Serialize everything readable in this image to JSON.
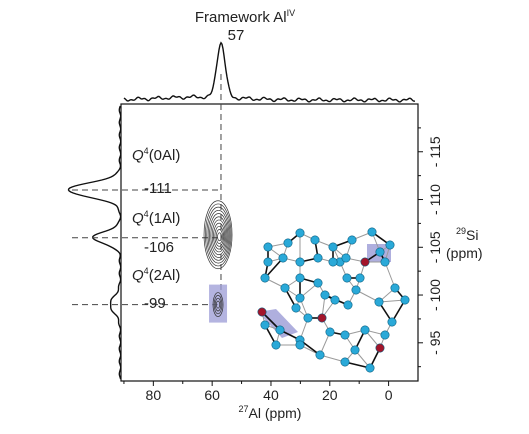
{
  "chart_data": {
    "type": "2D NMR correlation (contour)",
    "top_projection": {
      "label_main": "Framework Al",
      "label_sup": "IV",
      "peak_label": "57",
      "peak_position": 57
    },
    "left_projection": {
      "peaks": [
        {
          "q_prefix": "Q",
          "q_sup": "4",
          "q_rest": "(0Al)",
          "value_label": "-111",
          "position": -111
        },
        {
          "q_prefix": "Q",
          "q_sup": "4",
          "q_rest": "(1Al)",
          "value_label": "-106",
          "position": -106
        },
        {
          "q_prefix": "Q",
          "q_sup": "4",
          "q_rest": "(2Al)",
          "value_label": "-99",
          "position": -99
        }
      ]
    },
    "x_axis": {
      "label_sup": "27",
      "label_rest": "Al (ppm)",
      "range": [
        91,
        -10
      ],
      "ticks": [
        80,
        60,
        40,
        20,
        0
      ],
      "tick_labels": [
        "80",
        "60",
        "40",
        "20",
        "0"
      ]
    },
    "y_axis": {
      "label_sup": "29",
      "label_rest": "Si",
      "label_line2": "(ppm)",
      "range": [
        -91,
        -120
      ],
      "ticks": [
        -95,
        -100,
        -105,
        -110,
        -115
      ],
      "tick_labels": [
        "- 95",
        "- 100",
        "- 105",
        "- 110",
        "- 115"
      ]
    },
    "cross_peaks": [
      {
        "al": 58,
        "si": -106
      },
      {
        "al": 58,
        "si": -99
      }
    ],
    "highlight_color": "#9b9bd6",
    "atom_colors": {
      "si": "#2aa9d8",
      "al": "#a3142a"
    }
  }
}
